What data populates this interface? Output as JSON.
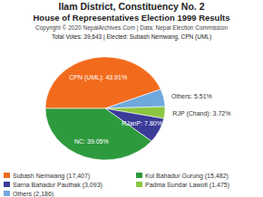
{
  "chart_data": {
    "type": "pie",
    "title": "Ilam District, Constituency No. 2",
    "subtitle": "House of Representatives Election 1999 Results",
    "source": "Copyright © 2020 NepalArchives.Com | Data: Nepal Election Commission",
    "caption": "Total Votes: 39,643 | Elected: Subash Nemwang, CPN (UML)",
    "categories": [
      "CPN (UML)",
      "Others",
      "RJP (Chand)",
      "RJanP",
      "NC"
    ],
    "values": [
      43.91,
      5.51,
      3.72,
      7.8,
      39.05
    ],
    "value_labels": [
      "43.91%",
      "5.51%",
      "3.72%",
      "7.80%",
      "39.05%"
    ],
    "colors": [
      "#f26b1d",
      "#6fa8dc",
      "#8cc63f",
      "#3b3b98",
      "#2e9a3e"
    ],
    "data_labels": true,
    "legend": "bottom",
    "candidates": [
      {
        "name": "Subash Nemwang",
        "votes": 17407,
        "votes_label": "17,407",
        "color": "#f26b1d"
      },
      {
        "name": "Kul Bahadur Gurung",
        "votes": 15482,
        "votes_label": "15,482",
        "color": "#2e9a3e"
      },
      {
        "name": "Sarna Bahadur Pauthak",
        "votes": 3093,
        "votes_label": "3,093",
        "color": "#3b3b98"
      },
      {
        "name": "Padma Sundar Lawoti",
        "votes": 1475,
        "votes_label": "1,475",
        "color": "#8cc63f"
      },
      {
        "name": "Others",
        "votes": 2186,
        "votes_label": "2,186",
        "color": "#6fa8dc"
      }
    ]
  }
}
